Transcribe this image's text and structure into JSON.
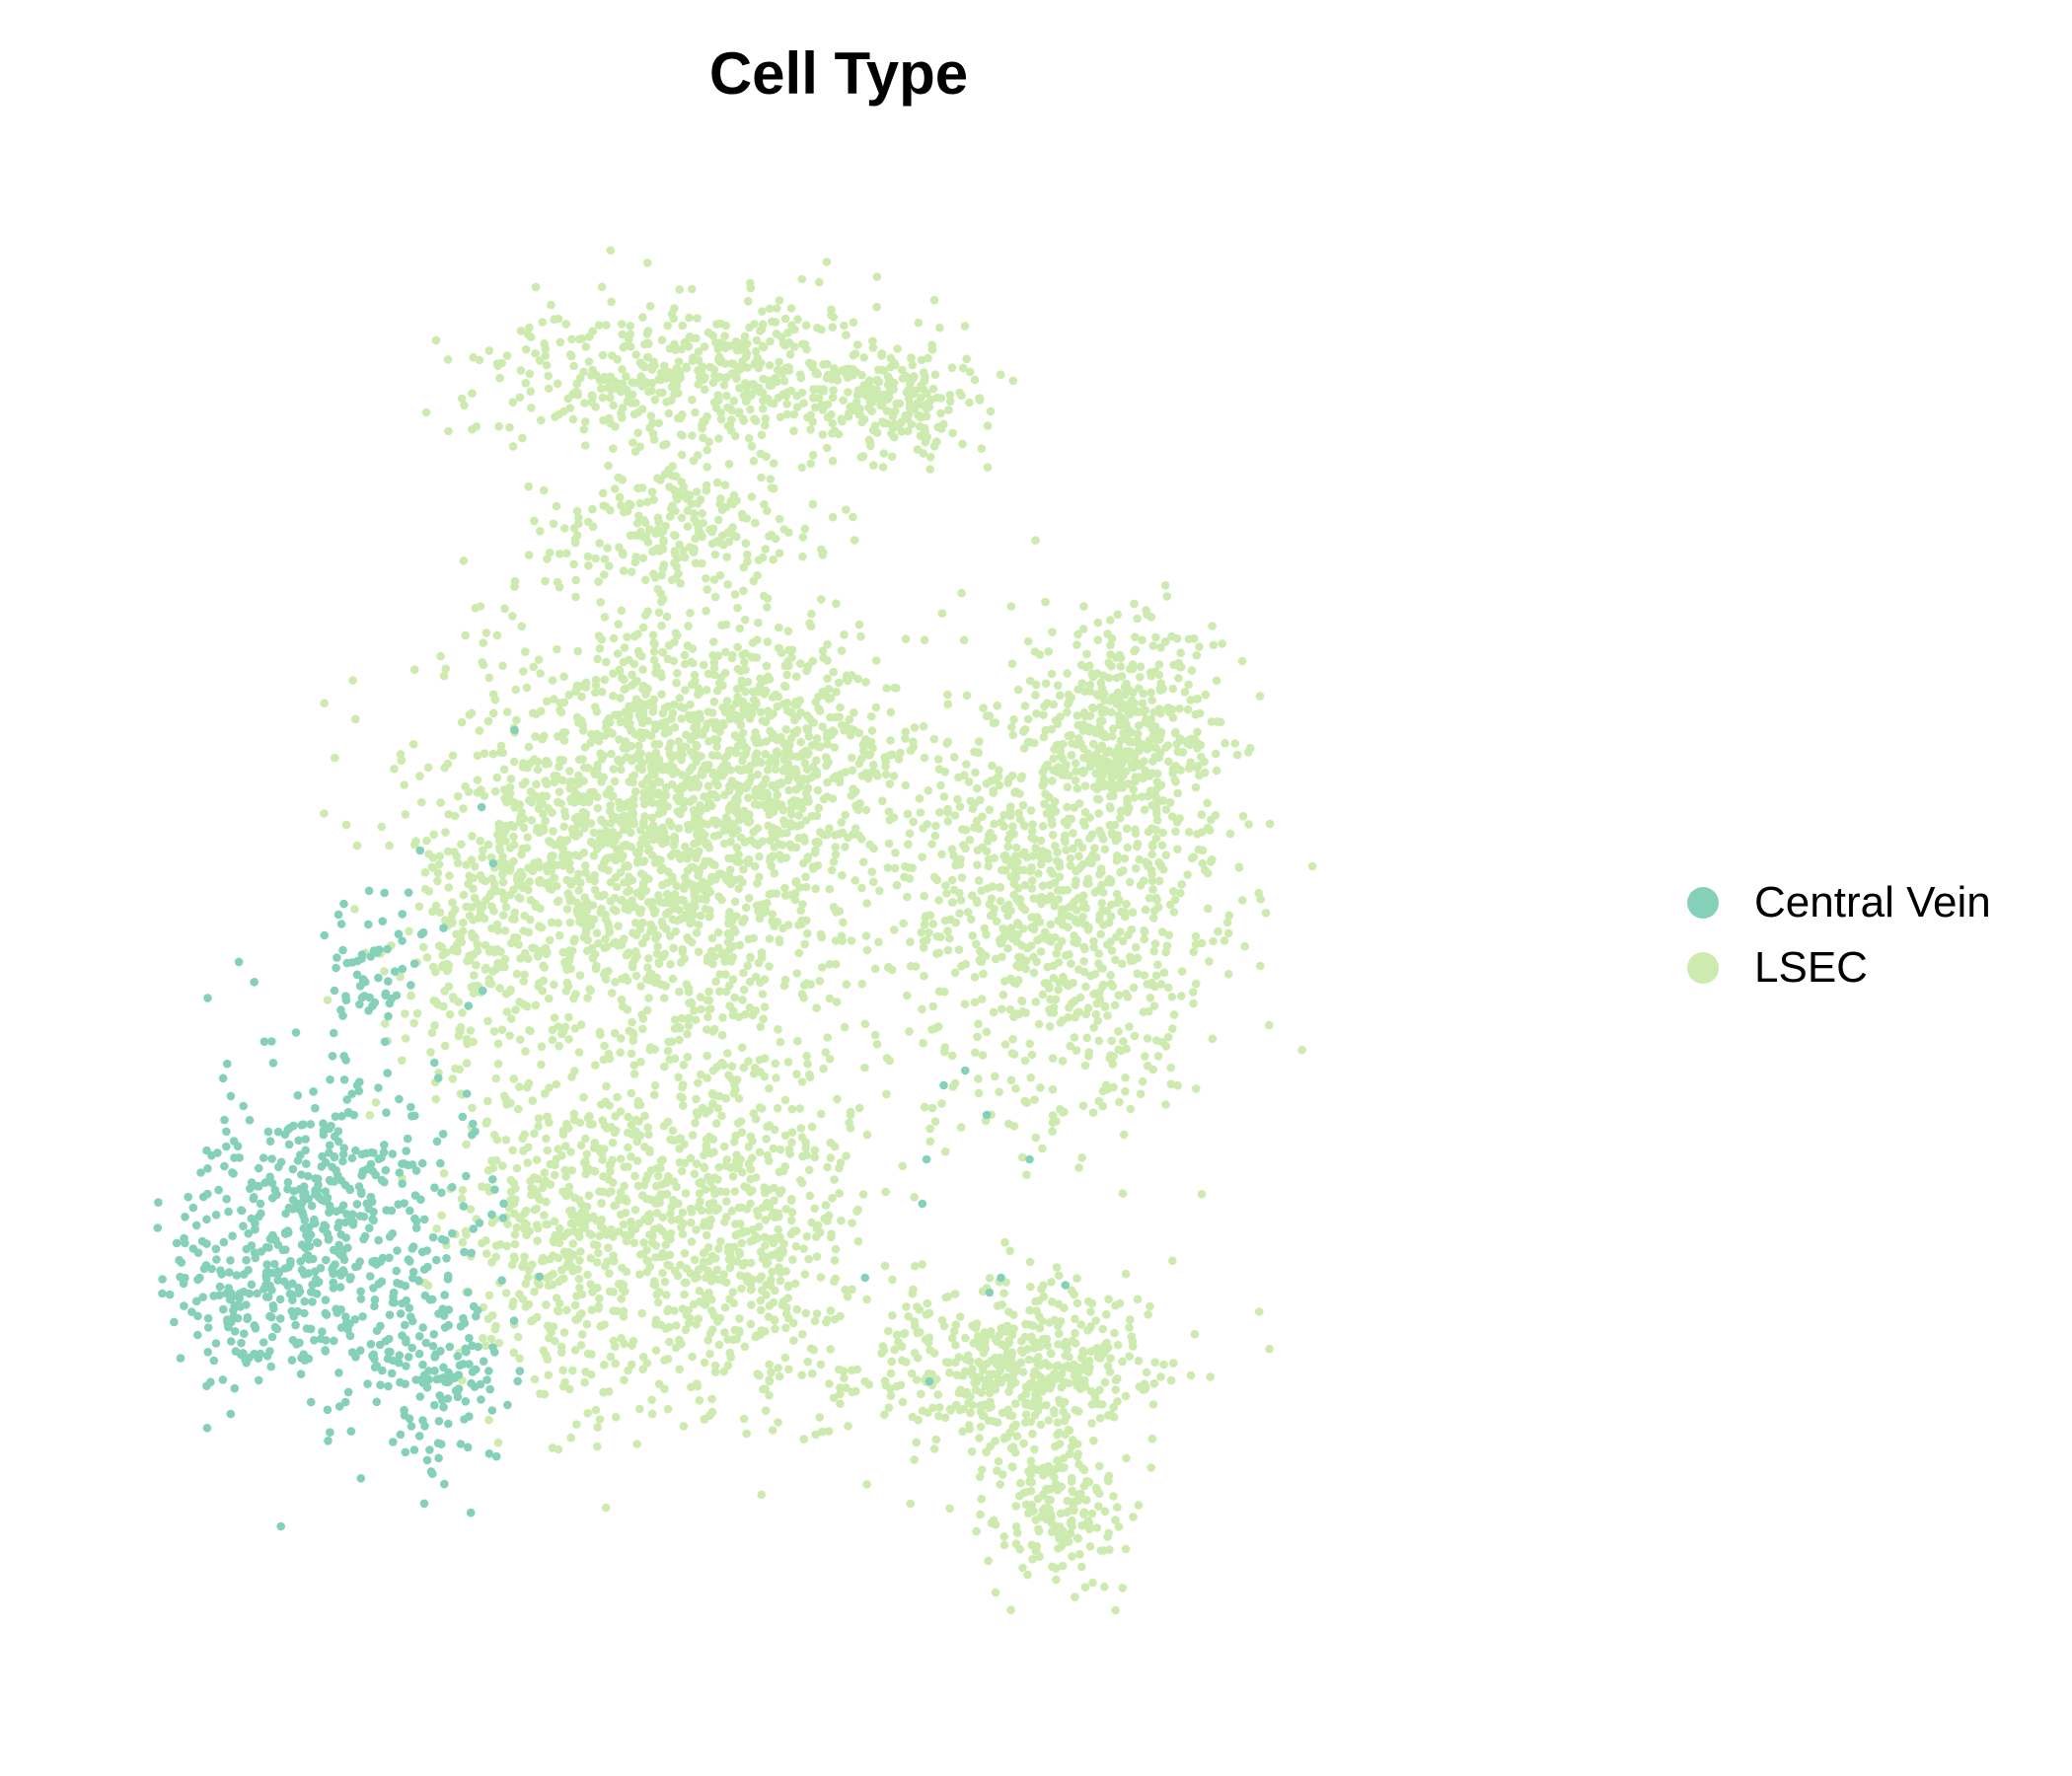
{
  "chart_data": {
    "type": "scatter",
    "title": "Cell Type",
    "xlabel": "",
    "ylabel": "",
    "axes_visible": false,
    "grid": false,
    "legend_position": "right",
    "xlim": [
      0,
      100
    ],
    "ylim": [
      0,
      100
    ],
    "series": [
      {
        "name": "Central Vein",
        "color": "#84D0B8",
        "clusters": [
          {
            "cx": 14,
            "cy": 30,
            "rx": 8,
            "ry": 9,
            "n": 520
          },
          {
            "cx": 8,
            "cy": 26,
            "rx": 5,
            "ry": 4,
            "n": 110
          },
          {
            "cx": 22,
            "cy": 20,
            "rx": 4,
            "ry": 6,
            "n": 140
          },
          {
            "cx": 17,
            "cy": 48,
            "rx": 3,
            "ry": 5,
            "n": 60
          }
        ],
        "sparse": [
          [
            55.5,
            32
          ],
          [
            55.8,
            35
          ],
          [
            57,
            40
          ],
          [
            60,
            38
          ],
          [
            58.5,
            41
          ],
          [
            63,
            35
          ],
          [
            61,
            27
          ],
          [
            51.5,
            27
          ],
          [
            27,
            64
          ],
          [
            24.7,
            58.8
          ],
          [
            25.5,
            55
          ],
          [
            65.5,
            26.5
          ],
          [
            60.2,
            26
          ],
          [
            56,
            20
          ]
        ]
      },
      {
        "name": "LSEC",
        "color": "#CDEBAE",
        "clusters": [
          {
            "cx": 36,
            "cy": 56,
            "rx": 12,
            "ry": 13,
            "n": 1700
          },
          {
            "cx": 30,
            "cy": 30,
            "rx": 6,
            "ry": 9,
            "n": 420
          },
          {
            "cx": 42,
            "cy": 30,
            "rx": 8,
            "ry": 10,
            "n": 650
          },
          {
            "cx": 45,
            "cy": 62,
            "rx": 8,
            "ry": 7,
            "n": 500
          },
          {
            "cx": 40,
            "cy": 88,
            "rx": 12,
            "ry": 4,
            "n": 520
          },
          {
            "cx": 53,
            "cy": 86,
            "rx": 5,
            "ry": 3,
            "n": 180
          },
          {
            "cx": 39,
            "cy": 78,
            "rx": 8,
            "ry": 4,
            "n": 220
          },
          {
            "cx": 65,
            "cy": 52,
            "rx": 9,
            "ry": 12,
            "n": 900
          },
          {
            "cx": 70,
            "cy": 64,
            "rx": 5,
            "ry": 6,
            "n": 420
          },
          {
            "cx": 62,
            "cy": 21,
            "rx": 8,
            "ry": 5,
            "n": 520
          },
          {
            "cx": 65,
            "cy": 11,
            "rx": 4,
            "ry": 4,
            "n": 180
          },
          {
            "cx": 24,
            "cy": 50,
            "rx": 4,
            "ry": 7,
            "n": 140
          }
        ]
      }
    ]
  },
  "legend": [
    {
      "label": "Central Vein",
      "color": "#84D0B8"
    },
    {
      "label": "LSEC",
      "color": "#CDEBAE"
    }
  ]
}
